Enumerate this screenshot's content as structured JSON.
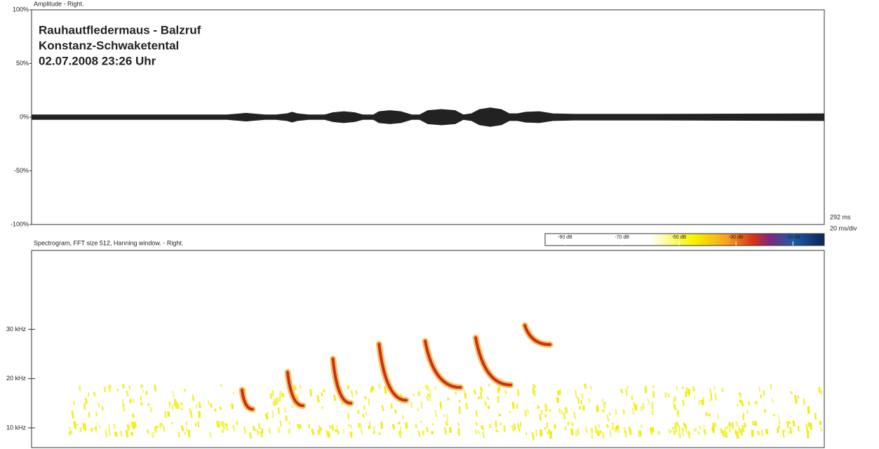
{
  "chart_data": [
    {
      "type": "waveform",
      "title": "Amplitude - Right.",
      "annotations": [
        "Rauhautfledermaus - Balzruf",
        "Konstanz-Schwaketental",
        "02.07.2008   23:26 Uhr"
      ],
      "x": [
        0,
        60,
        72,
        77,
        79,
        81,
        86,
        90,
        94,
        96,
        98,
        102,
        108,
        111,
        115,
        119,
        122,
        126,
        128,
        132,
        136,
        140,
        143,
        146,
        151,
        156,
        159,
        162,
        165,
        169,
        173,
        176,
        179,
        182,
        187,
        192,
        200,
        230,
        292
      ],
      "values": [
        2,
        2,
        2,
        3,
        3.5,
        3,
        2,
        2,
        3,
        4.5,
        3,
        2,
        2,
        4,
        5,
        4,
        2,
        2,
        5,
        6,
        5,
        2,
        2,
        6,
        7,
        6,
        2,
        3,
        7,
        8.5,
        7,
        3,
        3,
        4.5,
        5,
        3,
        2.5,
        2.5,
        3
      ],
      "color": "#222222",
      "xlim": [
        0,
        292
      ],
      "ylim": [
        -100,
        100
      ],
      "yticks": [
        {
          "value": 100,
          "label": "100%"
        },
        {
          "value": 50,
          "label": "50%"
        },
        {
          "value": 0,
          "label": "0%"
        },
        {
          "value": -50,
          "label": "-50%"
        },
        {
          "value": -100,
          "label": "-100%"
        }
      ],
      "duration_label": "292 ms",
      "scale_label": "20 ms/div"
    },
    {
      "type": "spectrogram",
      "title": "Spectrogram, FFT size 512, Hanning window. - Right.",
      "xlim": [
        0,
        292
      ],
      "ylim": [
        6,
        46
      ],
      "yticks": [
        {
          "value": 10,
          "label": "10 kHz"
        },
        {
          "value": 20,
          "label": "20 kHz"
        },
        {
          "value": 30,
          "label": "30 kHz"
        }
      ],
      "calls": [
        {
          "x": [
            77.5,
            81.4
          ],
          "y": [
            17.7,
            13.8
          ]
        },
        {
          "x": [
            94.3,
            100
          ],
          "y": [
            21.3,
            14.5
          ]
        },
        {
          "x": [
            111,
            117.6
          ],
          "y": [
            24,
            15
          ]
        },
        {
          "x": [
            128,
            138
          ],
          "y": [
            27,
            15.6
          ]
        },
        {
          "x": [
            145,
            158
          ],
          "y": [
            27.6,
            18.2
          ]
        },
        {
          "x": [
            163.6,
            176.5
          ],
          "y": [
            28.3,
            18.7
          ]
        },
        {
          "x": [
            181.7,
            191
          ],
          "y": [
            30.8,
            26.9
          ]
        }
      ],
      "noise": [
        {
          "x": [
            14,
            292
          ],
          "y": [
            9,
            11.5
          ]
        },
        {
          "x": [
            10,
            292
          ],
          "y": [
            12.5,
            19
          ]
        }
      ],
      "noise_color": "#eeee00",
      "colorbar": {
        "lim": [
          -97,
          1
        ],
        "ticks": [
          {
            "value": -90,
            "label": "-90 dB"
          },
          {
            "value": -70,
            "label": "-70 dB"
          },
          {
            "value": -50,
            "label": "-50 dB"
          },
          {
            "value": -30,
            "label": "-30 dB"
          },
          {
            "value": -10,
            "label": "-10 dB"
          }
        ],
        "stops": [
          -60,
          -45,
          -33,
          -24,
          -18,
          -10,
          0
        ],
        "colors": [
          "#ffffff",
          "#f5f500",
          "#f5a020",
          "#d83018",
          "#7a2a80",
          "#1f5aa8",
          "#0d2a60"
        ]
      }
    }
  ]
}
